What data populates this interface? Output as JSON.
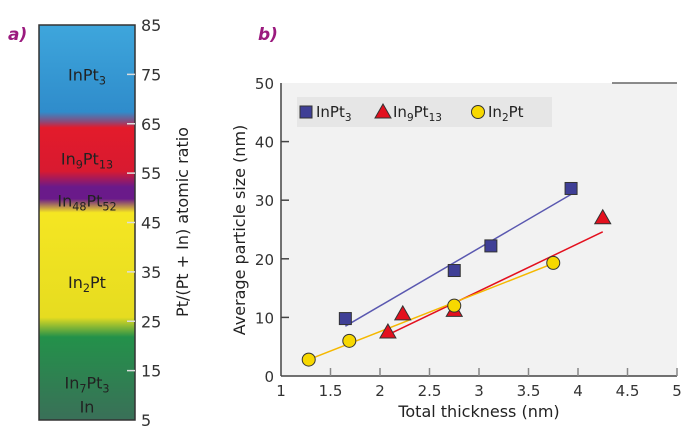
{
  "chart_data": [
    {
      "panel_label": "a)",
      "type": "bar",
      "ylabel": "Pt/(Pt + In) atomic ratio",
      "ylim": [
        5,
        85
      ],
      "yticks": [
        85,
        75,
        65,
        55,
        45,
        35,
        25,
        15,
        5
      ],
      "bands": [
        {
          "phase": "InPt",
          "sub": "3",
          "from": 66,
          "to": 85,
          "label_at": 75,
          "color": "#3a9ad6"
        },
        {
          "phase": "In",
          "sub": "9",
          "phase2": "Pt",
          "sub2": "13",
          "from": 52,
          "to": 66,
          "label_at": 58,
          "color": "#e01f2d"
        },
        {
          "phase": "In",
          "sub": "48",
          "phase2": "Pt",
          "sub2": "52",
          "from": 47,
          "to": 52,
          "label_at": 49.5,
          "color": "#6b1a8a"
        },
        {
          "phase": "In",
          "sub": "2",
          "phase2": "Pt",
          "sub2": "",
          "from": 20,
          "to": 47,
          "label_at": 33,
          "color": "#f0e020"
        },
        {
          "phase": "In",
          "sub": "7",
          "phase2": "Pt",
          "sub2": "3",
          "line2": "In",
          "from": 5,
          "to": 20,
          "label_at": 11,
          "color": "#2a8a4a"
        }
      ]
    },
    {
      "panel_label": "b)",
      "type": "scatter",
      "xlabel": "Total thickness (nm)",
      "ylabel": "Average particle size (nm)",
      "xlim": [
        1,
        5
      ],
      "ylim": [
        0,
        50
      ],
      "xticks": [
        "1",
        "1.5",
        "2",
        "2.5",
        "3",
        "3.5",
        "4",
        "4.5",
        "5"
      ],
      "yticks": [
        "0",
        "10",
        "20",
        "30",
        "40",
        "50"
      ],
      "legend": "top-left",
      "series": [
        {
          "name": "InPt",
          "sub": "3",
          "marker": "square",
          "color": "#3f3f96",
          "line_color": "#5a58b0",
          "x": [
            1.65,
            2.75,
            3.12,
            3.93
          ],
          "y": [
            9.8,
            18,
            22.2,
            32
          ],
          "fit": [
            [
              1.65,
              8.5
            ],
            [
              3.93,
              31
            ]
          ]
        },
        {
          "name": "In",
          "sub": "9",
          "name2": "Pt",
          "sub2": "13",
          "marker": "triangle",
          "color": "#e3101e",
          "line_color": "#e3101e",
          "x": [
            2.08,
            2.23,
            2.75,
            4.25
          ],
          "y": [
            7.5,
            10.6,
            11.2,
            27
          ],
          "fit": [
            [
              2.1,
              7.2
            ],
            [
              4.25,
              24.6
            ]
          ]
        },
        {
          "name": "In",
          "sub": "2",
          "name2": "Pt",
          "sub2": "",
          "marker": "circle",
          "color": "#f7d800",
          "line_color": "#f5b800",
          "x": [
            1.28,
            1.69,
            2.75,
            3.75
          ],
          "y": [
            2.8,
            6,
            12,
            19.3
          ],
          "fit": [
            [
              1.28,
              2.8
            ],
            [
              3.75,
              19.2
            ]
          ]
        }
      ]
    }
  ]
}
